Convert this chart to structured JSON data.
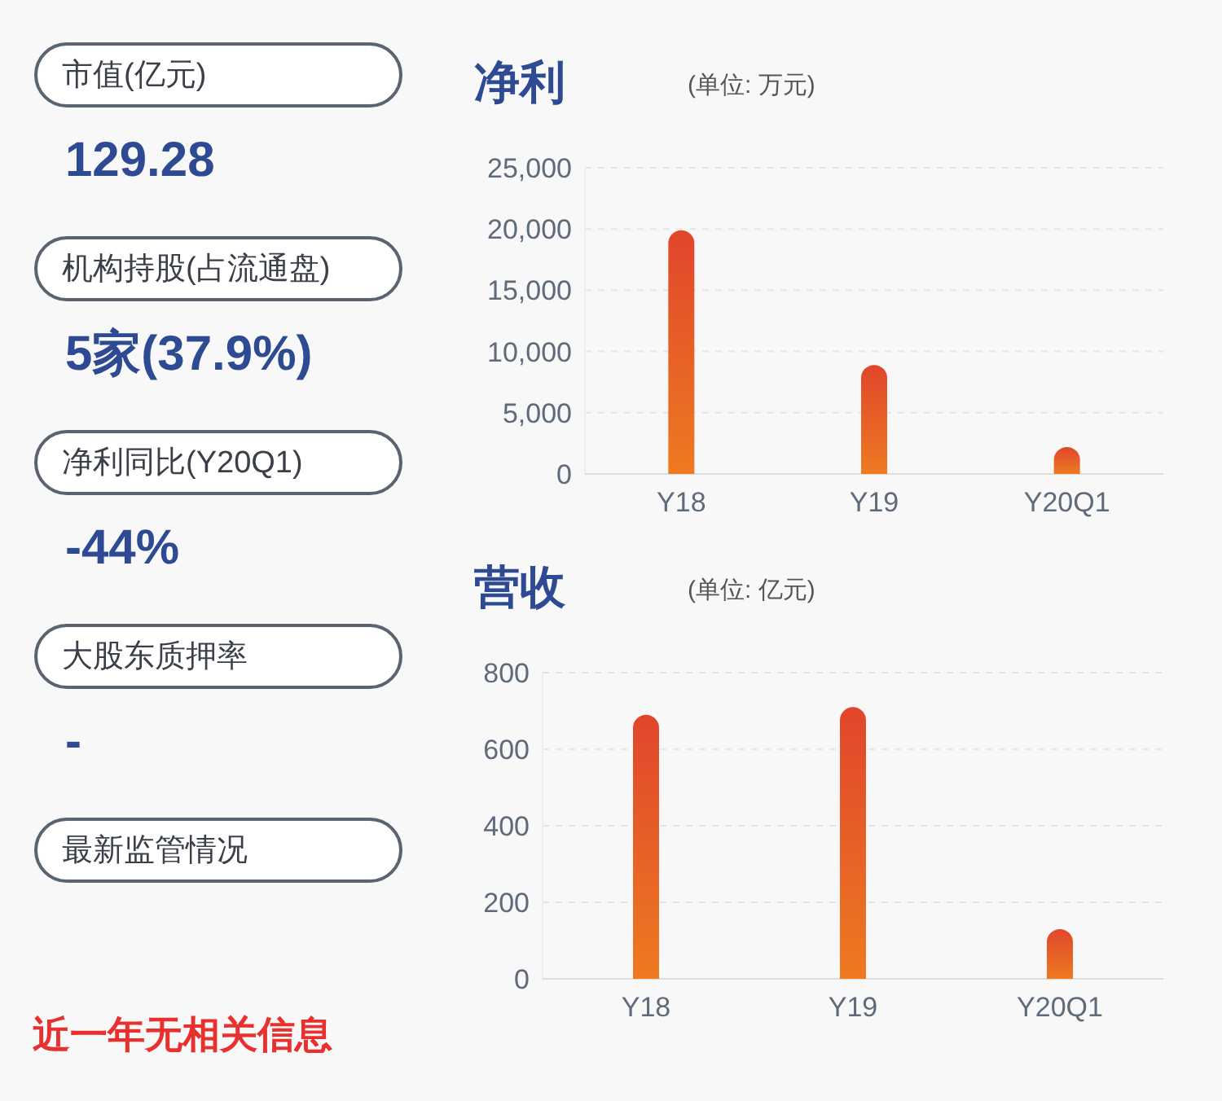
{
  "chart_data": [
    {
      "type": "other",
      "annotations": [
        "市值(亿元)",
        "129.28",
        "机构持股(占流通盘)",
        "5家(37.9%)",
        "净利同比(Y20Q1)",
        "-44%",
        "大股东质押率",
        "-",
        "最新监管情况",
        "近一年无相关信息"
      ]
    },
    {
      "type": "bar",
      "title": "净利",
      "subtitle": "(单位: 万元)",
      "categories": [
        "Y18",
        "Y19",
        "Y20Q1"
      ],
      "values": [
        19900,
        8900,
        2200
      ],
      "color": "#e0462c",
      "ylim": [
        0,
        25000
      ],
      "yticks": [
        {
          "value": 0,
          "label": "0"
        },
        {
          "value": 5000,
          "label": "5,000"
        },
        {
          "value": 10000,
          "label": "10,000"
        },
        {
          "value": 15000,
          "label": "15,000"
        },
        {
          "value": 20000,
          "label": "20,000"
        },
        {
          "value": 25000,
          "label": "25,000"
        }
      ],
      "grid": "y"
    },
    {
      "type": "bar",
      "title": "营收",
      "subtitle": "(单位: 亿元)",
      "categories": [
        "Y18",
        "Y19",
        "Y20Q1"
      ],
      "values": [
        690,
        710,
        130
      ],
      "color": "#e0462c",
      "ylim": [
        0,
        800
      ],
      "yticks": [
        0,
        200,
        400,
        600,
        800
      ],
      "grid": "y"
    }
  ]
}
